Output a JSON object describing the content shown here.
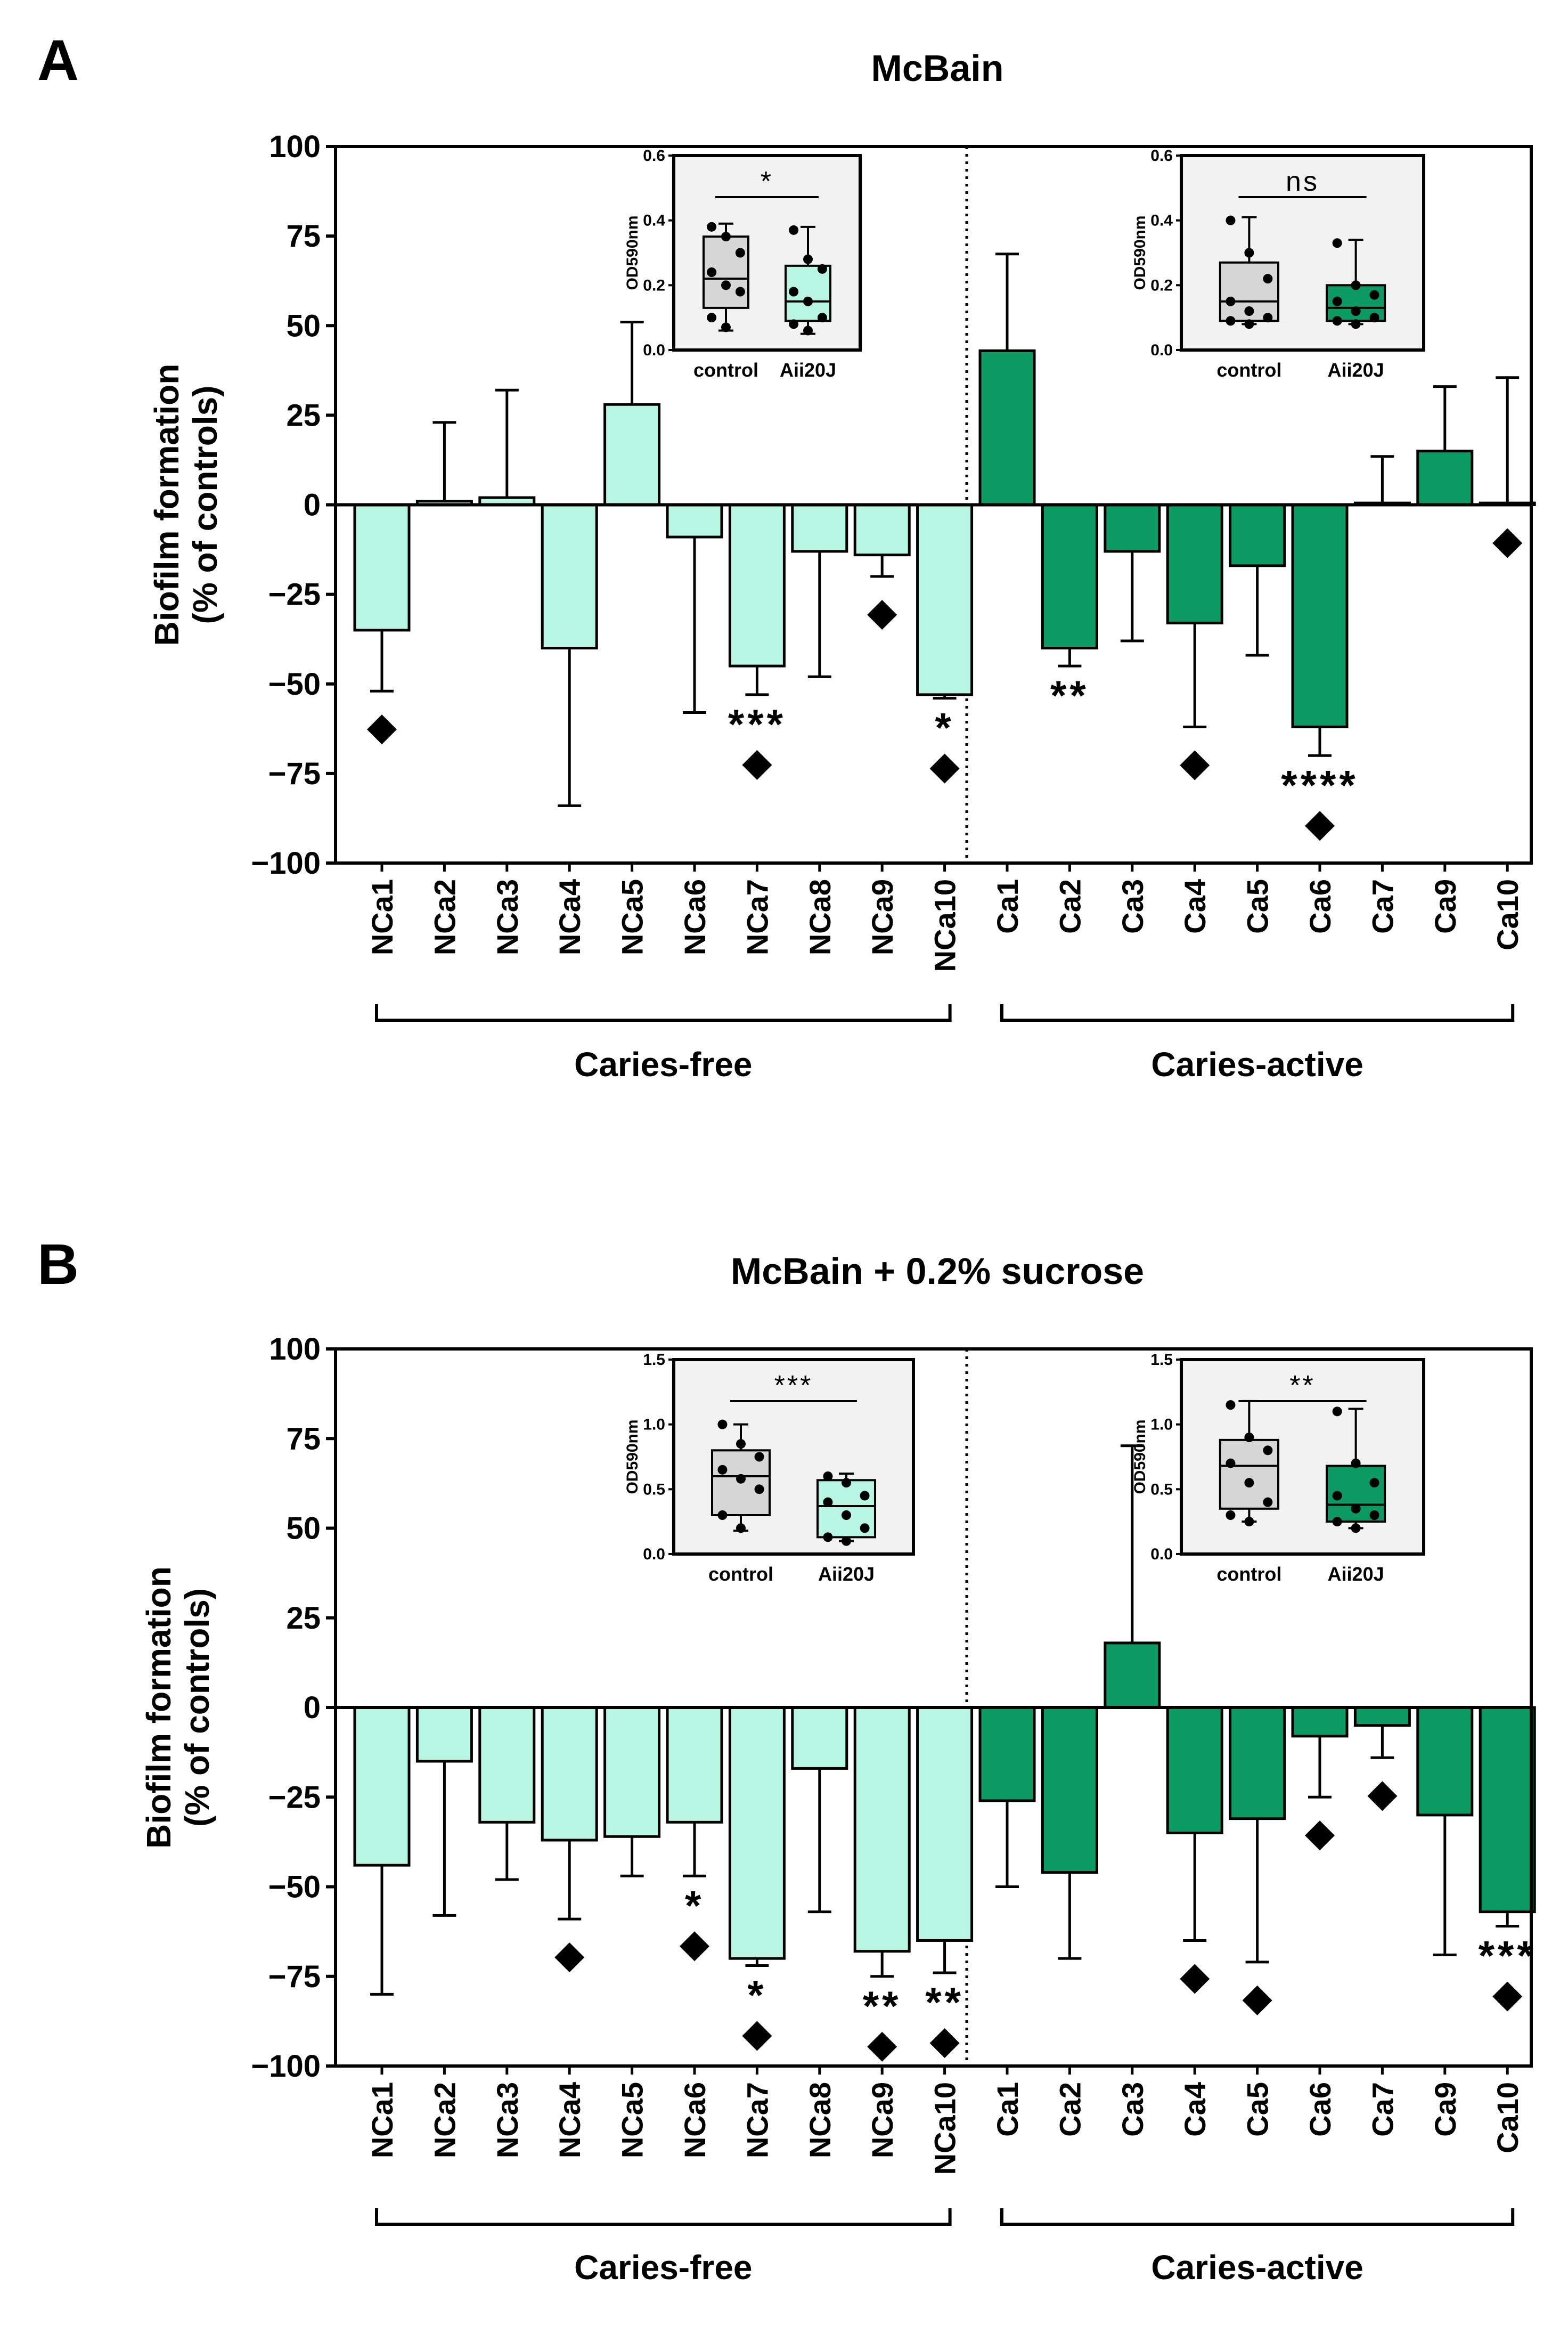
{
  "colors": {
    "caries_free": "#b8f5e3",
    "caries_active": "#0a9a62",
    "control": "#d6d6d6",
    "inset_bg": "#f2f2f2",
    "edge": "#000000"
  },
  "chart_data": [
    {
      "type": "bar",
      "panel": "A",
      "title": "McBain",
      "ylabel": [
        "Biofilm formation",
        "(% of controls)"
      ],
      "ylim": [
        -100,
        100
      ],
      "yticks": [
        100,
        75,
        50,
        25,
        0,
        -25,
        -50,
        -75,
        -100
      ],
      "ytick_labels": [
        "100",
        "75",
        "50",
        "25",
        "0",
        "−25",
        "−50",
        "−75",
        "−100"
      ],
      "groups": [
        "Caries-free",
        "Caries-active"
      ],
      "categories": [
        "NCa1",
        "NCa2",
        "NCa3",
        "NCa4",
        "NCa5",
        "NCa6",
        "NCa7",
        "NCa8",
        "NCa9",
        "NCa10",
        "Ca1",
        "Ca2",
        "Ca3",
        "Ca4",
        "Ca5",
        "Ca6",
        "Ca7",
        "Ca9",
        "Ca10"
      ],
      "values": [
        -35,
        1,
        2,
        -40,
        28,
        -9,
        -45,
        -13,
        -14,
        -53,
        43,
        -40,
        -13,
        -33,
        -17,
        -62,
        0.5,
        15,
        0.5
      ],
      "error": [
        17,
        22,
        30,
        44,
        23,
        49,
        8,
        35,
        6,
        1,
        27,
        5,
        25,
        29,
        25,
        8,
        13,
        18,
        35
      ],
      "group": [
        0,
        0,
        0,
        0,
        0,
        0,
        0,
        0,
        0,
        0,
        1,
        1,
        1,
        1,
        1,
        1,
        1,
        1,
        1
      ],
      "stars": [
        "",
        "",
        "",
        "",
        "",
        "",
        "***",
        "",
        "",
        "*",
        "",
        "**",
        "",
        "",
        "",
        "****",
        "",
        "",
        ""
      ],
      "diamonds": [
        true,
        false,
        false,
        false,
        false,
        false,
        true,
        false,
        true,
        true,
        false,
        false,
        false,
        true,
        false,
        true,
        false,
        false,
        true
      ],
      "insets": [
        {
          "ylabel": "OD590nm",
          "ymax": 0.6,
          "yticks": [
            "0.0",
            "0.2",
            "0.4",
            "0.6"
          ],
          "categories": [
            "control",
            "Aii20J"
          ],
          "significance": "*",
          "boxes": [
            [
              0.06,
              0.13,
              0.22,
              0.35,
              0.39
            ],
            [
              0.05,
              0.09,
              0.15,
              0.26,
              0.38
            ]
          ],
          "points": [
            [
              0.38,
              0.35,
              0.3,
              0.24,
              0.2,
              0.18,
              0.1,
              0.07
            ],
            [
              0.37,
              0.28,
              0.25,
              0.18,
              0.15,
              0.1,
              0.08,
              0.06
            ]
          ]
        },
        {
          "ylabel": "OD590nm",
          "ymax": 0.6,
          "yticks": [
            "0.0",
            "0.2",
            "0.4",
            "0.6"
          ],
          "categories": [
            "control",
            "Aii20J"
          ],
          "significance": "ns",
          "boxes": [
            [
              0.08,
              0.09,
              0.15,
              0.27,
              0.41
            ],
            [
              0.08,
              0.09,
              0.13,
              0.2,
              0.34
            ]
          ],
          "points": [
            [
              0.4,
              0.3,
              0.22,
              0.15,
              0.12,
              0.1,
              0.09,
              0.08
            ],
            [
              0.33,
              0.2,
              0.17,
              0.15,
              0.12,
              0.1,
              0.09,
              0.08
            ]
          ]
        }
      ]
    },
    {
      "type": "bar",
      "panel": "B",
      "title": "McBain + 0.2% sucrose",
      "ylabel": [
        "Biofilm formation",
        "(% of controls)"
      ],
      "ylim": [
        -100,
        100
      ],
      "yticks": [
        100,
        75,
        50,
        25,
        0,
        -25,
        -50,
        -75,
        -100
      ],
      "ytick_labels": [
        "100",
        "75",
        "50",
        "25",
        "0",
        "−25",
        "−50",
        "−75",
        "−100"
      ],
      "groups": [
        "Caries-free",
        "Caries-active"
      ],
      "categories": [
        "NCa1",
        "NCa2",
        "NCa3",
        "NCa4",
        "NCa5",
        "NCa6",
        "NCa7",
        "NCa8",
        "NCa9",
        "NCa10",
        "Ca1",
        "Ca2",
        "Ca3",
        "Ca4",
        "Ca5",
        "Ca6",
        "Ca7",
        "Ca9",
        "Ca10"
      ],
      "values": [
        -44,
        -15,
        -32,
        -37,
        -36,
        -32,
        -70,
        -17,
        -68,
        -65,
        -26,
        -46,
        18,
        -35,
        -31,
        -8,
        -5,
        -30,
        -57
      ],
      "error": [
        36,
        43,
        16,
        22,
        11,
        15,
        2,
        40,
        7,
        9,
        24,
        24,
        55,
        30,
        40,
        17,
        9,
        39,
        4
      ],
      "group": [
        0,
        0,
        0,
        0,
        0,
        0,
        0,
        0,
        0,
        0,
        1,
        1,
        1,
        1,
        1,
        1,
        1,
        1,
        1
      ],
      "stars": [
        "",
        "",
        "",
        "",
        "",
        "*",
        "*",
        "",
        "**",
        "**",
        "",
        "",
        "",
        "",
        "",
        "",
        "",
        "",
        "***"
      ],
      "diamonds": [
        false,
        false,
        false,
        true,
        false,
        true,
        true,
        false,
        true,
        true,
        false,
        false,
        false,
        true,
        true,
        true,
        true,
        false,
        true
      ],
      "insets": [
        {
          "ylabel": "OD590nm",
          "ymax": 1.5,
          "yticks": [
            "0.0",
            "0.5",
            "1.0",
            "1.5"
          ],
          "categories": [
            "control",
            "Aii20J"
          ],
          "significance": "***",
          "boxes": [
            [
              0.18,
              0.3,
              0.6,
              0.8,
              1.0
            ],
            [
              0.1,
              0.13,
              0.37,
              0.57,
              0.62
            ]
          ],
          "points": [
            [
              1.0,
              0.85,
              0.75,
              0.65,
              0.58,
              0.5,
              0.3,
              0.2
            ],
            [
              0.6,
              0.55,
              0.45,
              0.4,
              0.3,
              0.2,
              0.13,
              0.1
            ]
          ]
        },
        {
          "ylabel": "OD590nm",
          "ymax": 1.5,
          "yticks": [
            "0.0",
            "0.5",
            "1.0",
            "1.5"
          ],
          "categories": [
            "control",
            "Aii20J"
          ],
          "significance": "**",
          "boxes": [
            [
              0.25,
              0.35,
              0.68,
              0.88,
              1.18
            ],
            [
              0.2,
              0.25,
              0.38,
              0.68,
              1.12
            ]
          ],
          "points": [
            [
              1.15,
              0.9,
              0.8,
              0.7,
              0.55,
              0.4,
              0.3,
              0.25
            ],
            [
              1.1,
              0.7,
              0.55,
              0.45,
              0.35,
              0.3,
              0.25,
              0.2
            ]
          ]
        }
      ]
    }
  ]
}
